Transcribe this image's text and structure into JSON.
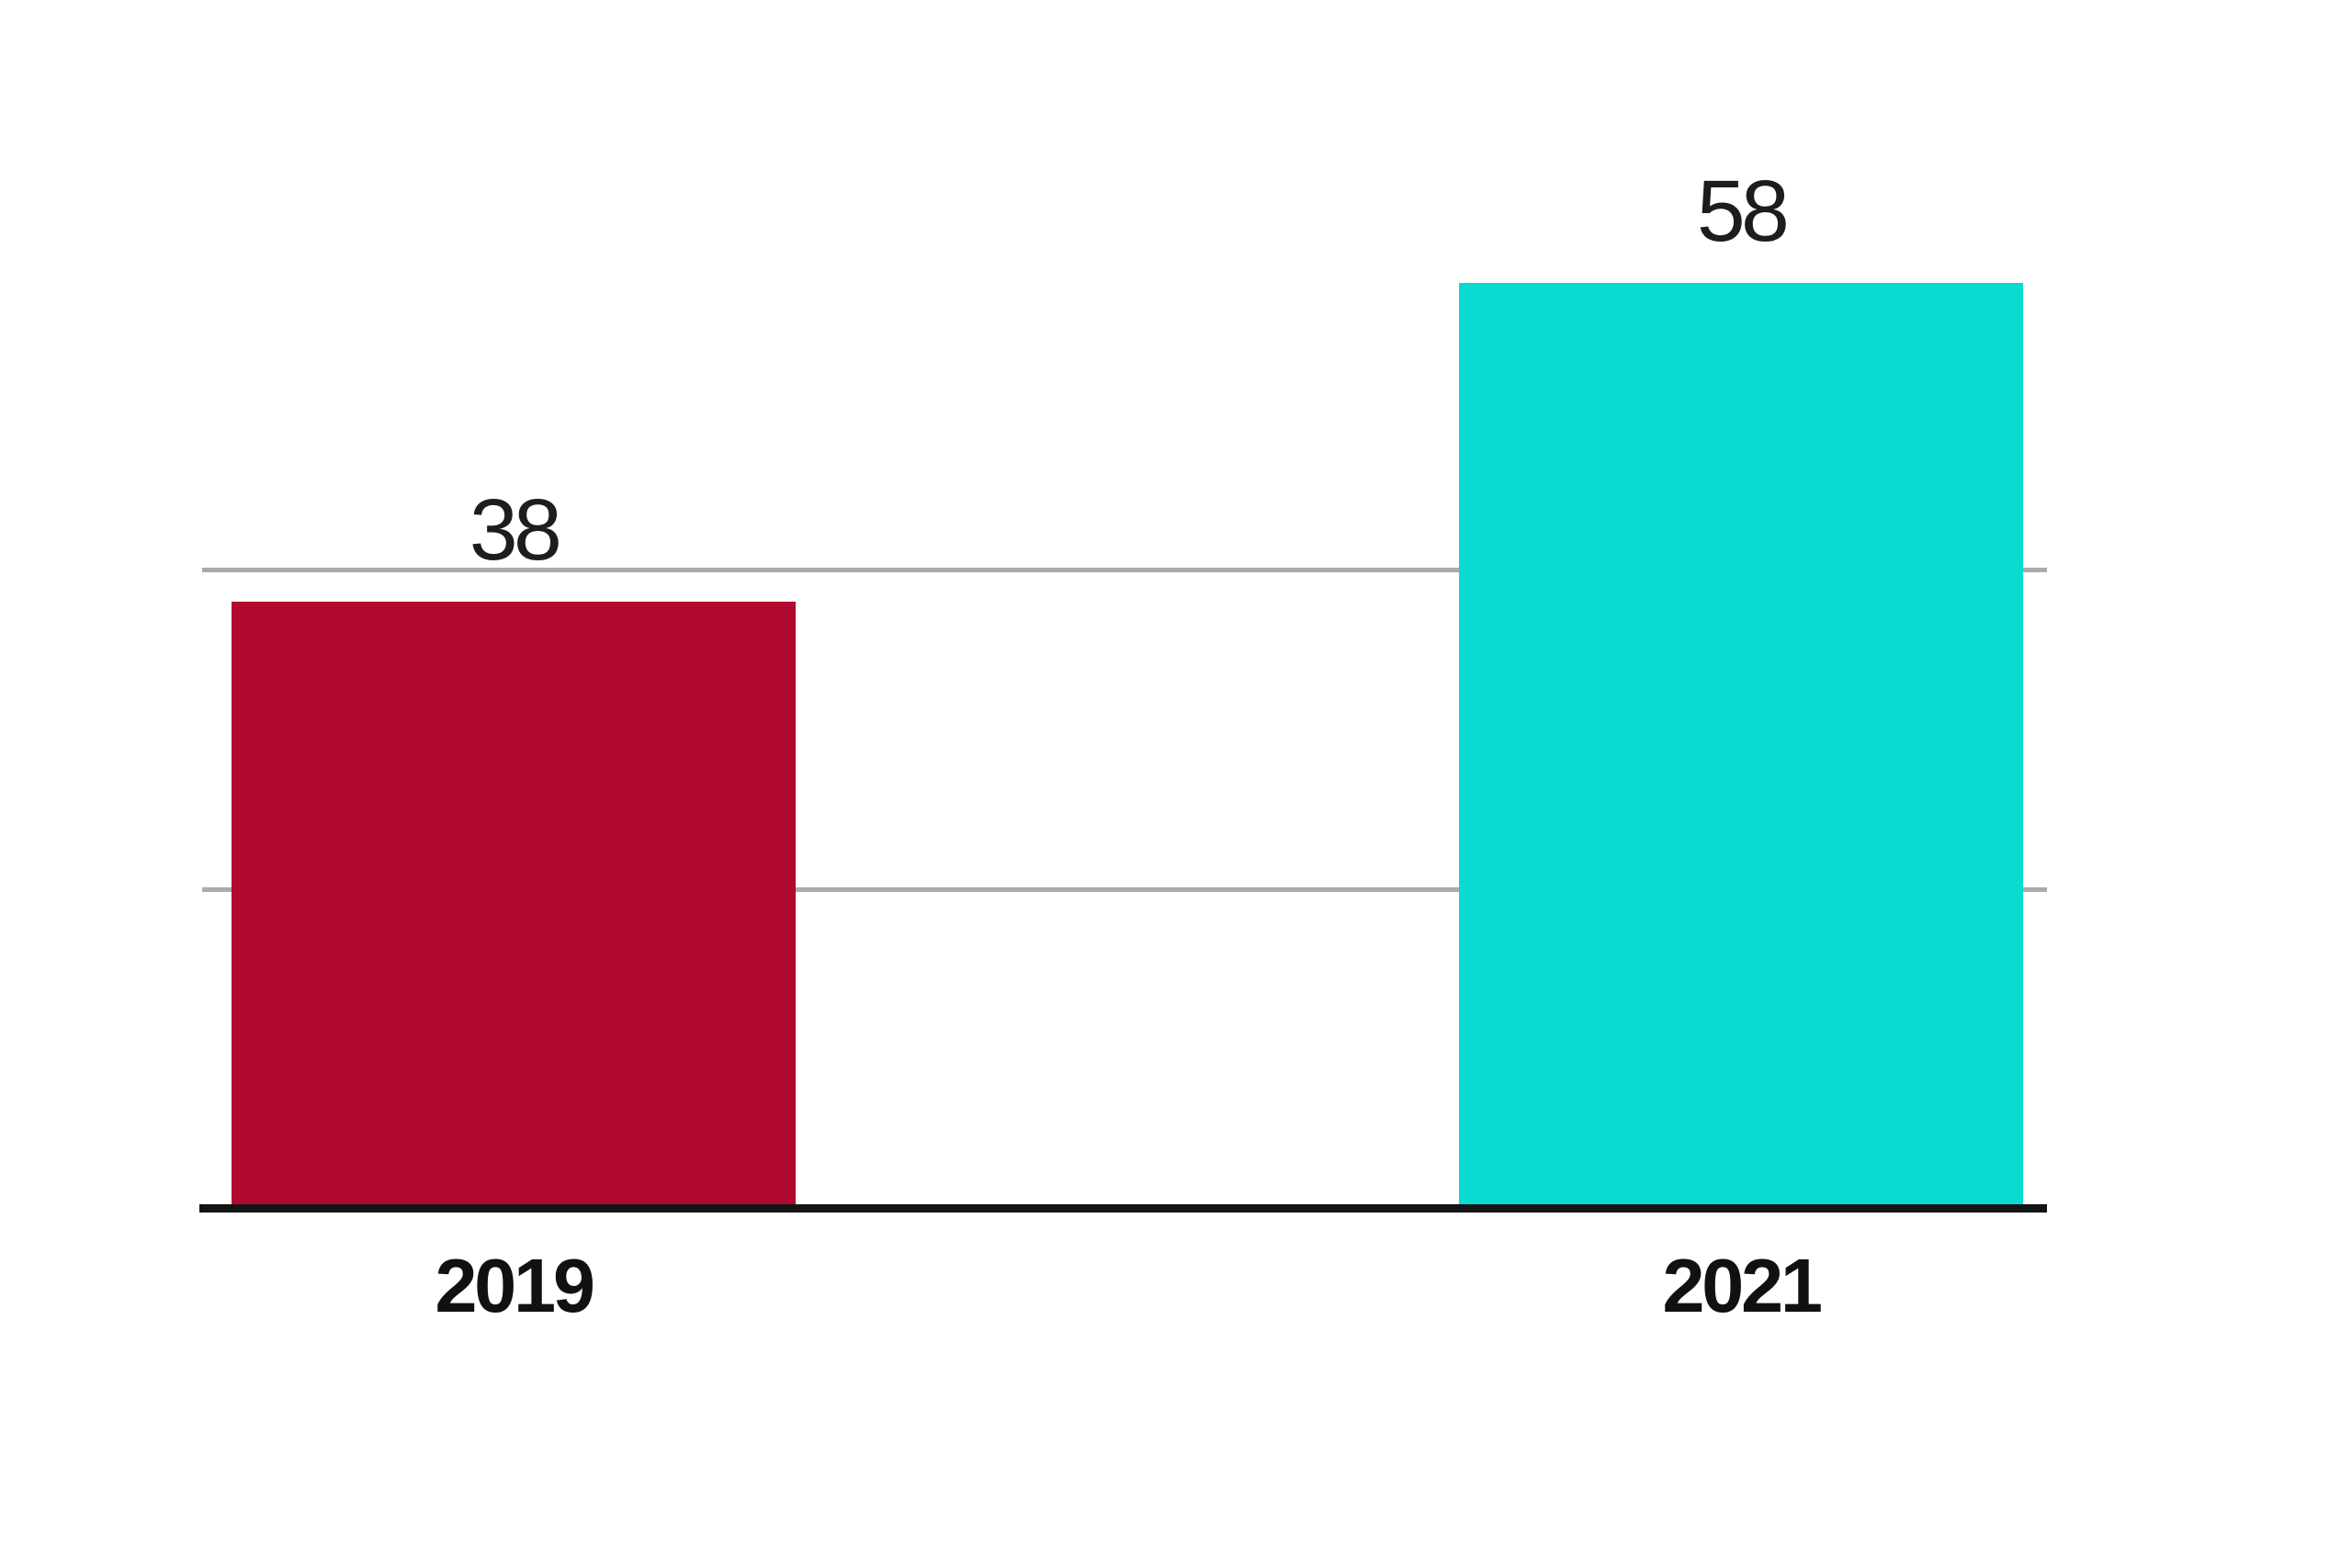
{
  "chart_data": {
    "type": "bar",
    "title": "",
    "xlabel": "",
    "ylabel": "",
    "categories": [
      "2019",
      "2021"
    ],
    "values": [
      38,
      58
    ],
    "value_labels": [
      "38",
      "58"
    ],
    "bar_colors": [
      "#B00A30",
      "#08DCD0"
    ],
    "gridline_values": [
      20,
      40
    ],
    "ylim": [
      0,
      60
    ],
    "grid_on": true,
    "y_tick_labels_shown": false,
    "legend": "none",
    "grid_color": "#ABABAB",
    "axis_color": "#141414",
    "value_label_color": "#1D1D1D",
    "category_label_color": "#111111",
    "background_color": "#FFFFFF"
  }
}
